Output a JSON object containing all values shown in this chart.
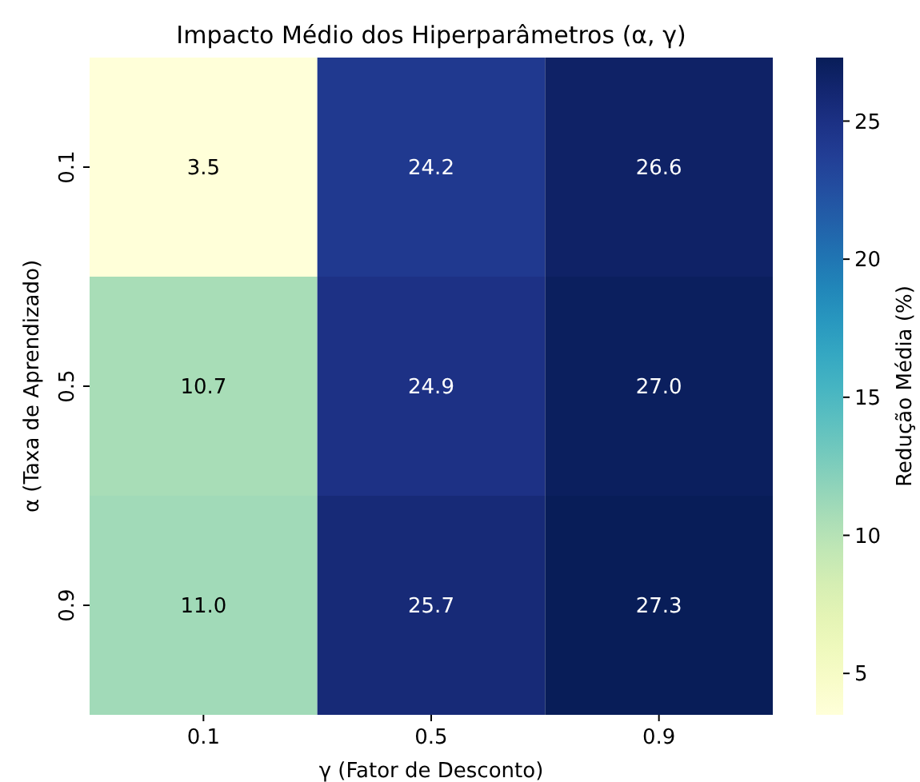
{
  "chart_data": {
    "type": "heatmap",
    "title": "Impacto Médio dos Hiperparâmetros (α, γ)",
    "xlabel": "γ (Fator de Desconto)",
    "ylabel": "α (Taxa de Aprendizado)",
    "clabel": "Redução Média (%)",
    "categories": [
      "0.1",
      "0.5",
      "0.9"
    ],
    "y_categories": [
      "0.1",
      "0.5",
      "0.9"
    ],
    "cells": [
      [
        3.5,
        24.2,
        26.6
      ],
      [
        10.7,
        24.9,
        27.0
      ],
      [
        11.0,
        25.7,
        27.3
      ]
    ],
    "cell_labels": [
      [
        "3.5",
        "24.2",
        "26.6"
      ],
      [
        "10.7",
        "24.9",
        "27.0"
      ],
      [
        "11.0",
        "25.7",
        "27.3"
      ]
    ],
    "clim": [
      3.5,
      27.3
    ],
    "cticks": [
      5,
      10,
      15,
      20,
      25
    ]
  }
}
